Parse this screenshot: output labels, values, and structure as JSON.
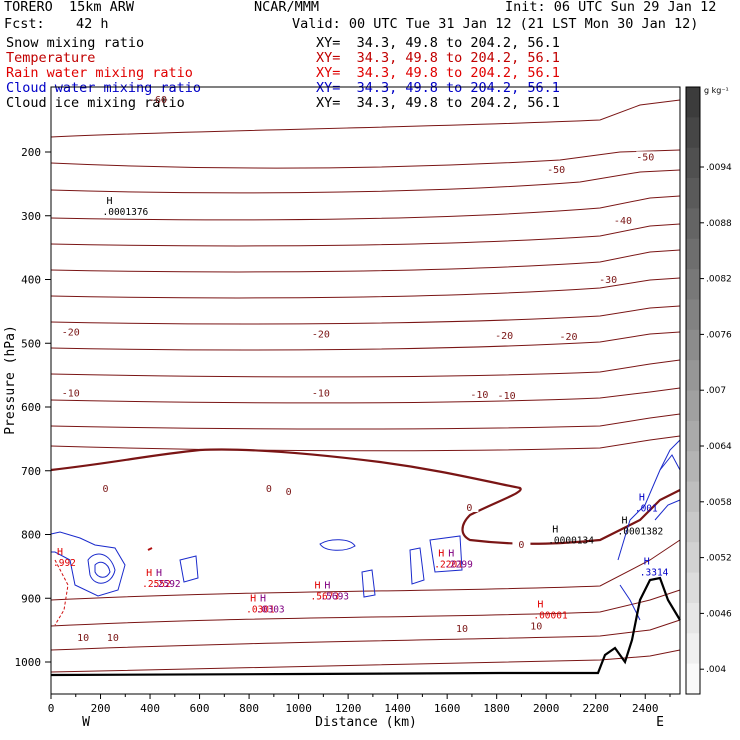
{
  "header": {
    "model": "TORERO  15km ARW",
    "center": "NCAR/MMM",
    "init": "Init: 06 UTC Sun 29 Jan 12",
    "fcst_label": "Fcst:",
    "fcst_value": "42 h",
    "valid": "Valid: 00 UTC Tue 31 Jan 12 (21 LST Mon 30 Jan 12)"
  },
  "fields": [
    {
      "name": "Snow mixing ratio",
      "xy": "XY=  34.3, 49.8 to 204.2, 56.1",
      "color": "#000000"
    },
    {
      "name": "Temperature",
      "xy": "XY=  34.3, 49.8 to 204.2, 56.1",
      "color": "#c00000"
    },
    {
      "name": "Rain water mixing ratio",
      "xy": "XY=  34.3, 49.8 to 204.2, 56.1",
      "color": "#e00000"
    },
    {
      "name": "Cloud water mixing ratio",
      "xy": "XY=  34.3, 49.8 to 204.2, 56.1",
      "color": "#0000c8"
    },
    {
      "name": "Cloud ice mixing ratio",
      "xy": "XY=  34.3, 49.8 to 204.2, 56.1",
      "color": "#000000"
    }
  ],
  "chart_data": {
    "type": "contour",
    "xlabel": "Distance (km)",
    "ylabel": "Pressure (hPa)",
    "xlim": [
      0,
      2540
    ],
    "ylim": [
      1050,
      100
    ],
    "x_ticks": [
      0,
      200,
      400,
      600,
      800,
      1000,
      1200,
      1400,
      1600,
      1800,
      2000,
      2200,
      2400
    ],
    "y_ticks": [
      200,
      300,
      400,
      500,
      600,
      700,
      800,
      900,
      1000
    ],
    "x_end_labels": {
      "left": "W",
      "right": "E"
    },
    "colorbar": {
      "units": "g kg⁻¹",
      "ticks": [
        ".0094",
        ".0088",
        ".0082",
        ".0076",
        ".007",
        ".0064",
        ".0058",
        ".0052",
        ".0046",
        ".004"
      ]
    },
    "temperature_contour_labels": [
      {
        "text": "-50",
        "x": 2040,
        "p": 230
      },
      {
        "text": "-50",
        "x": 2400,
        "p": 210
      },
      {
        "text": "-40",
        "x": 2310,
        "p": 310
      },
      {
        "text": "-30",
        "x": 2250,
        "p": 402
      },
      {
        "text": "-20",
        "x": 80,
        "p": 485
      },
      {
        "text": "-20",
        "x": 1090,
        "p": 488
      },
      {
        "text": "-20",
        "x": 1830,
        "p": 490
      },
      {
        "text": "-20",
        "x": 2090,
        "p": 492
      },
      {
        "text": "-10",
        "x": 80,
        "p": 580
      },
      {
        "text": "-10",
        "x": 1090,
        "p": 580
      },
      {
        "text": "-10",
        "x": 1730,
        "p": 583
      },
      {
        "text": "-10",
        "x": 1840,
        "p": 584
      },
      {
        "text": "0",
        "x": 220,
        "p": 730
      },
      {
        "text": "0",
        "x": 880,
        "p": 730
      },
      {
        "text": "0",
        "x": 960,
        "p": 735
      },
      {
        "text": "0",
        "x": 1690,
        "p": 760
      },
      {
        "text": "0",
        "x": 1900,
        "p": 818
      },
      {
        "text": "10",
        "x": 130,
        "p": 964
      },
      {
        "text": "10",
        "x": 250,
        "p": 964
      },
      {
        "text": "10",
        "x": 1660,
        "p": 950
      },
      {
        "text": "10",
        "x": 1960,
        "p": 946
      }
    ],
    "extrema_labels": [
      {
        "mark": "H",
        "value": ".0001376",
        "x": 200,
        "p": 285,
        "color": "#000000"
      },
      {
        "mark": "H",
        "value": ".0000134",
        "x": 2000,
        "p": 800,
        "color": "#000000"
      },
      {
        "mark": "H",
        "value": ".0001382",
        "x": 2280,
        "p": 786,
        "color": "#000000"
      },
      {
        "mark": "H",
        "value": ".001",
        "x": 2350,
        "p": 750,
        "color": "#0000c8"
      },
      {
        "mark": "H",
        "value": ".3314",
        "x": 2370,
        "p": 850,
        "color": "#0000c8"
      },
      {
        "mark": "H",
        "value": ".00001",
        "x": 1940,
        "p": 918,
        "color": "#e00000"
      },
      {
        "mark": "H",
        "value": ".2201",
        "x": 1540,
        "p": 838,
        "color": "#e00000"
      },
      {
        "mark": "H",
        "value": ".2299",
        "x": 1580,
        "p": 838,
        "color": "#800080"
      },
      {
        "mark": "H",
        "value": ".2552",
        "x": 360,
        "p": 868,
        "color": "#e00000"
      },
      {
        "mark": "H",
        "value": ".2592",
        "x": 400,
        "p": 868,
        "color": "#800080"
      },
      {
        "mark": "H",
        "value": ".0301",
        "x": 780,
        "p": 908,
        "color": "#e00000"
      },
      {
        "mark": "H",
        "value": ".0303",
        "x": 820,
        "p": 908,
        "color": "#800080"
      },
      {
        "mark": "H",
        "value": ".5673",
        "x": 1040,
        "p": 888,
        "color": "#e00000"
      },
      {
        "mark": "H",
        "value": ".5693",
        "x": 1080,
        "p": 888,
        "color": "#800080"
      },
      {
        "mark": "H",
        "value": ".992",
        "x": 0,
        "p": 835,
        "color": "#e00000"
      }
    ],
    "top_partial_label": "-60"
  }
}
